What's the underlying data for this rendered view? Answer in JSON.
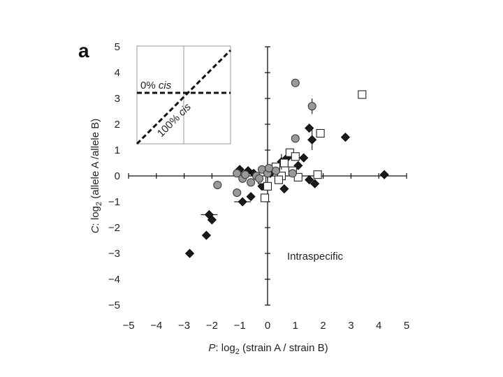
{
  "chart_data": {
    "type": "scatter",
    "panel_label": "a",
    "xlabel": {
      "italic": "P",
      "rest": ": log",
      "sub": "2",
      "tail": " (strain A / strain B)"
    },
    "ylabel": {
      "italic": "C",
      "rest": ": log",
      "sub": "2",
      "tail": " (allele A /allele B)"
    },
    "xlim": [
      -5,
      5
    ],
    "ylim": [
      -5,
      5
    ],
    "xticks": [
      "−5",
      "−4",
      "−3",
      "−2",
      "−1",
      "0",
      "1",
      "2",
      "3",
      "4",
      "5"
    ],
    "yticks": [
      "−5",
      "−4",
      "−3",
      "−2",
      "−1",
      "0",
      "1",
      "2",
      "3",
      "4",
      "5"
    ],
    "annotation": "Intraspecific",
    "inset": {
      "label_zero": {
        "prefix": "0% ",
        "italic": "cis"
      },
      "label_hundred": {
        "prefix": "100% ",
        "italic": "cis"
      }
    },
    "series": [
      {
        "name": "filled diamonds",
        "marker": "diamond",
        "fill": "#1a1a1a",
        "points": [
          {
            "x": -2.8,
            "y": -3.0
          },
          {
            "x": -2.2,
            "y": -2.3
          },
          {
            "x": -2.1,
            "y": -1.5,
            "xerr": 0.3
          },
          {
            "x": -2.0,
            "y": -1.7
          },
          {
            "x": -0.9,
            "y": -1.0,
            "xerr": 0.3
          },
          {
            "x": -0.6,
            "y": -0.8
          },
          {
            "x": -1.0,
            "y": 0.25
          },
          {
            "x": -0.7,
            "y": 0.2
          },
          {
            "x": -0.5,
            "y": 0.1
          },
          {
            "x": -0.3,
            "y": -0.1
          },
          {
            "x": -0.2,
            "y": -0.4
          },
          {
            "x": 0.1,
            "y": 0.1
          },
          {
            "x": 0.5,
            "y": 0.55,
            "yerr": 0.3
          },
          {
            "x": 0.7,
            "y": 0.7
          },
          {
            "x": 1.1,
            "y": 0.4
          },
          {
            "x": 1.3,
            "y": 0.7
          },
          {
            "x": 1.5,
            "y": 1.85
          },
          {
            "x": 1.6,
            "y": 1.4,
            "yerr": 0.4
          },
          {
            "x": 1.5,
            "y": -0.15
          },
          {
            "x": 1.7,
            "y": -0.3
          },
          {
            "x": 2.8,
            "y": 1.5
          },
          {
            "x": 4.2,
            "y": 0.05
          },
          {
            "x": 0.6,
            "y": -0.5
          }
        ]
      },
      {
        "name": "open squares",
        "marker": "square",
        "fill": "#ffffff",
        "points": [
          {
            "x": 3.4,
            "y": 3.15
          },
          {
            "x": 1.9,
            "y": 1.65
          },
          {
            "x": 0.8,
            "y": 0.9
          },
          {
            "x": 1.0,
            "y": 0.75
          },
          {
            "x": 0.6,
            "y": 0.5
          },
          {
            "x": 0.3,
            "y": 0.35
          },
          {
            "x": 0.9,
            "y": 0.2
          },
          {
            "x": 1.8,
            "y": 0.05
          },
          {
            "x": 0.5,
            "y": 0.0
          },
          {
            "x": -0.2,
            "y": -0.15
          },
          {
            "x": 0.0,
            "y": -0.4
          },
          {
            "x": -0.1,
            "y": -0.85
          },
          {
            "x": 0.4,
            "y": -0.15
          },
          {
            "x": 1.1,
            "y": -0.05
          }
        ]
      },
      {
        "name": "gray circles",
        "marker": "circle",
        "fill": "#999999",
        "points": [
          {
            "x": 1.0,
            "y": 3.6
          },
          {
            "x": 1.6,
            "y": 2.7,
            "yerr": 0.3
          },
          {
            "x": 1.0,
            "y": 1.45
          },
          {
            "x": 0.9,
            "y": 0.1
          },
          {
            "x": 0.3,
            "y": 0.2
          },
          {
            "x": -1.8,
            "y": -0.35
          },
          {
            "x": -1.1,
            "y": -0.65
          },
          {
            "x": -1.1,
            "y": 0.1
          },
          {
            "x": -0.9,
            "y": -0.1
          },
          {
            "x": -0.6,
            "y": -0.25
          },
          {
            "x": -0.4,
            "y": 0.0
          },
          {
            "x": -0.2,
            "y": 0.25
          },
          {
            "x": 0.0,
            "y": 0.1
          },
          {
            "x": -0.8,
            "y": 0.05
          },
          {
            "x": -0.3,
            "y": -0.1
          },
          {
            "x": 0.05,
            "y": 0.3
          }
        ]
      }
    ]
  }
}
